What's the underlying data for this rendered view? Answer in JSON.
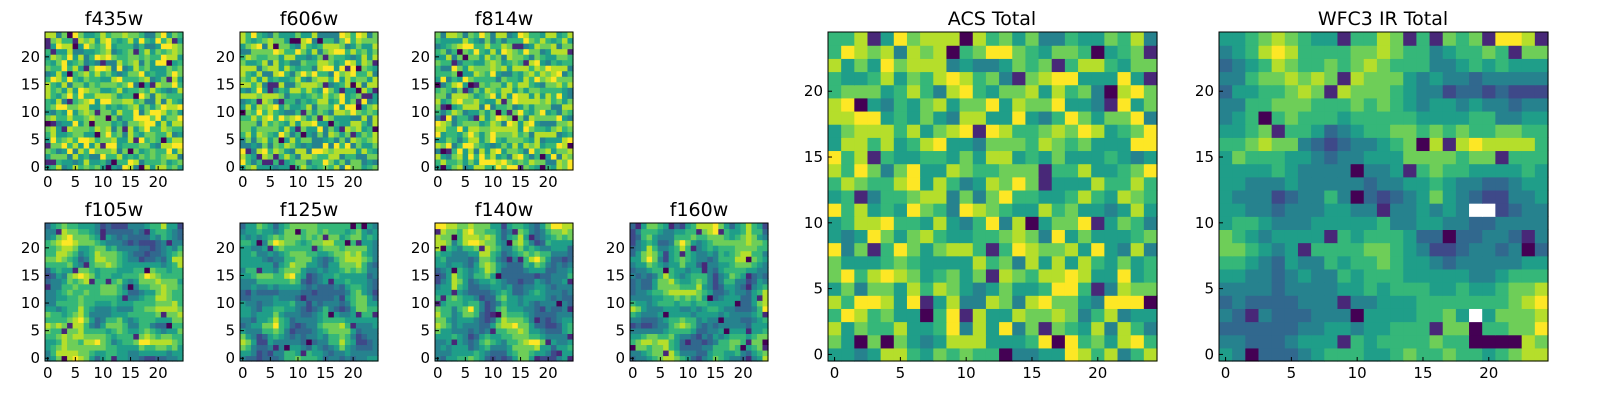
{
  "colors": {
    "cmap_viridis": [
      "#440154",
      "#482878",
      "#3e4989",
      "#31688e",
      "#26828e",
      "#1f9e89",
      "#35b779",
      "#6ece58",
      "#b5de2b",
      "#fde725"
    ],
    "nan_cell": "#ffffff",
    "frame": "#000000"
  },
  "chart_data": [
    {
      "type": "heatmap",
      "title": "f435w",
      "grid": [
        25,
        25
      ],
      "xticks": [
        "0",
        "5",
        "10",
        "15",
        "20"
      ],
      "yticks": [
        "0",
        "5",
        "10",
        "15",
        "20"
      ],
      "seed": 11,
      "mode": "noise"
    },
    {
      "type": "heatmap",
      "title": "f606w",
      "grid": [
        25,
        25
      ],
      "xticks": [
        "0",
        "5",
        "10",
        "15",
        "20"
      ],
      "yticks": [
        "0",
        "5",
        "10",
        "15",
        "20"
      ],
      "seed": 23,
      "mode": "noise"
    },
    {
      "type": "heatmap",
      "title": "f814w",
      "grid": [
        25,
        25
      ],
      "xticks": [
        "0",
        "5",
        "10",
        "15",
        "20"
      ],
      "yticks": [
        "0",
        "5",
        "10",
        "15",
        "20"
      ],
      "seed": 37,
      "mode": "noise"
    },
    {
      "type": "heatmap",
      "title": "f105w",
      "grid": [
        25,
        25
      ],
      "xticks": [
        "0",
        "5",
        "10",
        "15",
        "20"
      ],
      "yticks": [
        "0",
        "5",
        "10",
        "15",
        "20"
      ],
      "seed": 41,
      "mode": "blocky"
    },
    {
      "type": "heatmap",
      "title": "f125w",
      "grid": [
        25,
        25
      ],
      "xticks": [
        "0",
        "5",
        "10",
        "15",
        "20"
      ],
      "yticks": [
        "0",
        "5",
        "10",
        "15",
        "20"
      ],
      "seed": 53,
      "mode": "blocky"
    },
    {
      "type": "heatmap",
      "title": "f140w",
      "grid": [
        25,
        25
      ],
      "xticks": [
        "0",
        "5",
        "10",
        "15",
        "20"
      ],
      "yticks": [
        "0",
        "5",
        "10",
        "15",
        "20"
      ],
      "seed": 67,
      "mode": "blocky"
    },
    {
      "type": "heatmap",
      "title": "f160w",
      "grid": [
        25,
        25
      ],
      "xticks": [
        "0",
        "5",
        "10",
        "15",
        "20"
      ],
      "yticks": [
        "0",
        "5",
        "10",
        "15",
        "20"
      ],
      "seed": 79,
      "mode": "blocky"
    },
    {
      "type": "heatmap",
      "title": "ACS Total",
      "grid": [
        25,
        25
      ],
      "xticks": [
        "0",
        "5",
        "10",
        "15",
        "20"
      ],
      "yticks": [
        "0",
        "5",
        "10",
        "15",
        "20"
      ],
      "seed": 97,
      "mode": "noise"
    },
    {
      "type": "heatmap",
      "title": "WFC3 IR Total",
      "grid": [
        25,
        25
      ],
      "xticks": [
        "0",
        "5",
        "10",
        "15",
        "20"
      ],
      "yticks": [
        "0",
        "5",
        "10",
        "15",
        "20"
      ],
      "seed": 131,
      "mode": "smooth",
      "nan_cells": [
        [
          19,
          11
        ],
        [
          20,
          11
        ],
        [
          19,
          3
        ]
      ],
      "low_cells": [
        [
          19,
          2
        ],
        [
          20,
          1
        ],
        [
          21,
          1
        ],
        [
          22,
          1
        ],
        [
          19,
          1
        ]
      ]
    }
  ]
}
